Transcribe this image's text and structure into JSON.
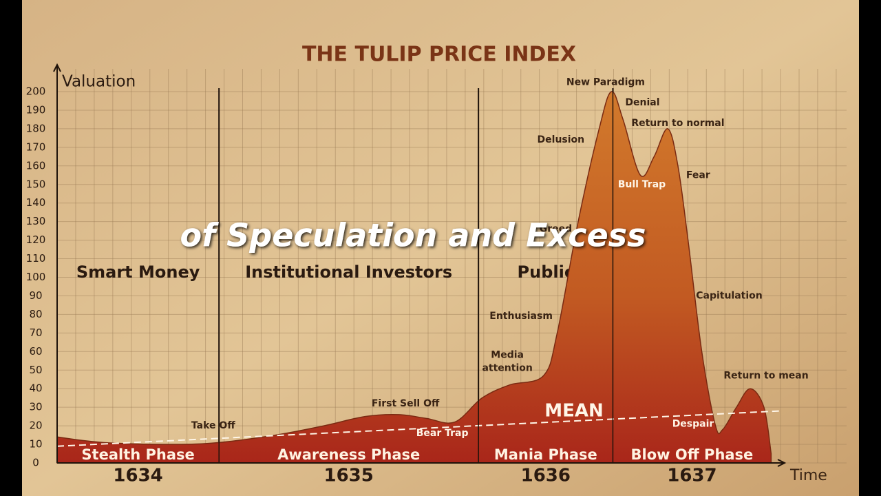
{
  "chart_data": {
    "type": "area",
    "title": "THE TULIP PRICE INDEX",
    "subtitle": "of Speculation and Excess",
    "y_label": "Valuation",
    "x_label": "Time",
    "ylim": [
      0,
      200
    ],
    "yticks": [
      0,
      10,
      20,
      30,
      40,
      50,
      60,
      70,
      80,
      90,
      100,
      110,
      120,
      130,
      140,
      150,
      160,
      170,
      180,
      190,
      200
    ],
    "xlim": [
      0,
      100
    ],
    "grid": true,
    "series": [
      {
        "color": "#b8461e",
        "x": [
          0,
          6.4,
          15.9,
          22.4,
          30.2,
          36.9,
          42.6,
          47.3,
          51.1,
          55.0,
          58.8,
          62.6,
          67.3,
          69.2,
          72.1,
          75.0,
          76.7,
          78.3,
          80.7,
          82.6,
          84.5,
          85.9,
          87.3,
          89.2,
          91.1,
          92.1,
          94.0,
          95.9,
          97.8,
          98.8
        ],
        "values": [
          14,
          11,
          10,
          11,
          15,
          20,
          25,
          26,
          24,
          22,
          35,
          42,
          47,
          70,
          130,
          180,
          200,
          185,
          155,
          165,
          180,
          160,
          120,
          60,
          20,
          18,
          30,
          40,
          30,
          5
        ]
      },
      {
        "name": "MEAN",
        "color": "#fff6e8",
        "x": [
          0,
          100
        ],
        "values": [
          9,
          28
        ]
      }
    ],
    "investor_groups": [
      {
        "name": "Smart Money",
        "start": 0,
        "end": 22.4
      },
      {
        "name": "Institutional Investors",
        "start": 22.4,
        "end": 58.3
      },
      {
        "name": "Public",
        "start": 58.3,
        "end": 76.9
      }
    ],
    "phases": [
      {
        "name": "Stealth Phase",
        "year": 1634,
        "start": 0,
        "end": 22.4
      },
      {
        "name": "Awareness Phase",
        "year": 1635,
        "start": 22.4,
        "end": 58.3
      },
      {
        "name": "Mania Phase",
        "year": 1636,
        "start": 58.3,
        "end": 76.9
      },
      {
        "name": "Blow Off Phase",
        "year": 1637,
        "start": 76.9,
        "end": 98.8
      }
    ],
    "annotations": [
      {
        "text": "New Paradigm",
        "x": 75.9,
        "y": 205
      },
      {
        "text": "Denial",
        "x": 81.0,
        "y": 194
      },
      {
        "text": "Return to normal",
        "x": 85.9,
        "y": 183
      },
      {
        "text": "Delusion",
        "x": 69.7,
        "y": 174
      },
      {
        "text": "Bull Trap",
        "x": 80.9,
        "y": 150
      },
      {
        "text": "Fear",
        "x": 88.7,
        "y": 155
      },
      {
        "text": "Greed",
        "x": 69.0,
        "y": 126
      },
      {
        "text": "Capitulation",
        "x": 93.0,
        "y": 90
      },
      {
        "text": "Enthusiasm",
        "x": 64.2,
        "y": 79
      },
      {
        "text": "Media",
        "x": 62.3,
        "y": 58
      },
      {
        "text": "attention",
        "x": 62.3,
        "y": 51
      },
      {
        "text": "Return to mean",
        "x": 98.1,
        "y": 47
      },
      {
        "text": "First Sell Off",
        "x": 48.2,
        "y": 32
      },
      {
        "text": "Bear Trap",
        "x": 53.3,
        "y": 16
      },
      {
        "text": "Take Off",
        "x": 21.6,
        "y": 20
      },
      {
        "text": "Despair",
        "x": 88.0,
        "y": 21
      }
    ]
  }
}
